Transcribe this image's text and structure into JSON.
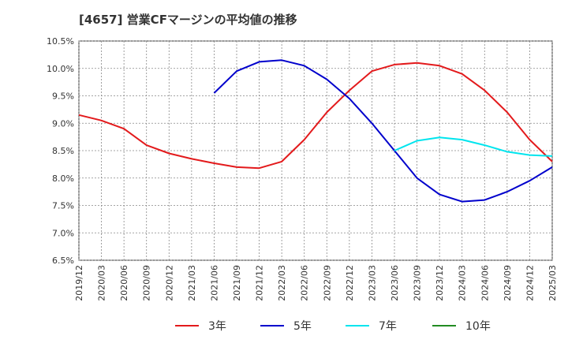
{
  "chart_data": {
    "type": "line",
    "title": "[4657]  営業CFマージンの平均値の推移",
    "xlabel": "",
    "ylabel": "",
    "ylim": [
      6.5,
      10.5
    ],
    "yticks": [
      6.5,
      7.0,
      7.5,
      8.0,
      8.5,
      9.0,
      9.5,
      10.0,
      10.5
    ],
    "y_unit": "%",
    "x_ticks": [
      "2019/12",
      "2020/03",
      "2020/06",
      "2020/09",
      "2020/12",
      "2021/03",
      "2021/06",
      "2021/09",
      "2021/12",
      "2022/03",
      "2022/06",
      "2022/09",
      "2022/12",
      "2023/03",
      "2023/06",
      "2023/09",
      "2023/12",
      "2024/03",
      "2024/06",
      "2024/09",
      "2024/12",
      "2025/03"
    ],
    "grid": true,
    "legend_position": "bottom",
    "series": [
      {
        "name": "3年",
        "color": "#e31a1c",
        "points": [
          [
            "2019/12",
            9.15
          ],
          [
            "2020/03",
            9.05
          ],
          [
            "2020/06",
            8.9
          ],
          [
            "2020/09",
            8.6
          ],
          [
            "2020/12",
            8.45
          ],
          [
            "2021/03",
            8.35
          ],
          [
            "2021/06",
            8.27
          ],
          [
            "2021/09",
            8.2
          ],
          [
            "2021/12",
            8.18
          ],
          [
            "2022/03",
            8.3
          ],
          [
            "2022/06",
            8.7
          ],
          [
            "2022/09",
            9.2
          ],
          [
            "2022/12",
            9.6
          ],
          [
            "2023/03",
            9.95
          ],
          [
            "2023/06",
            10.07
          ],
          [
            "2023/09",
            10.1
          ],
          [
            "2023/12",
            10.05
          ],
          [
            "2024/03",
            9.9
          ],
          [
            "2024/06",
            9.6
          ],
          [
            "2024/09",
            9.2
          ],
          [
            "2024/12",
            8.7
          ],
          [
            "2025/03",
            8.3
          ]
        ]
      },
      {
        "name": "5年",
        "color": "#0000cc",
        "points": [
          [
            "2021/06",
            9.55
          ],
          [
            "2021/09",
            9.95
          ],
          [
            "2021/12",
            10.12
          ],
          [
            "2022/03",
            10.15
          ],
          [
            "2022/06",
            10.05
          ],
          [
            "2022/09",
            9.8
          ],
          [
            "2022/12",
            9.45
          ],
          [
            "2023/03",
            9.0
          ],
          [
            "2023/06",
            8.5
          ],
          [
            "2023/09",
            8.0
          ],
          [
            "2023/12",
            7.7
          ],
          [
            "2024/03",
            7.57
          ],
          [
            "2024/06",
            7.6
          ],
          [
            "2024/09",
            7.75
          ],
          [
            "2024/12",
            7.95
          ],
          [
            "2025/03",
            8.2
          ]
        ]
      },
      {
        "name": "7年",
        "color": "#00e5ee",
        "points": [
          [
            "2023/06",
            8.5
          ],
          [
            "2023/09",
            8.68
          ],
          [
            "2023/12",
            8.74
          ],
          [
            "2024/03",
            8.7
          ],
          [
            "2024/06",
            8.6
          ],
          [
            "2024/09",
            8.48
          ],
          [
            "2024/12",
            8.42
          ],
          [
            "2025/03",
            8.4
          ]
        ]
      },
      {
        "name": "10年",
        "color": "#228b22",
        "points": []
      }
    ]
  }
}
